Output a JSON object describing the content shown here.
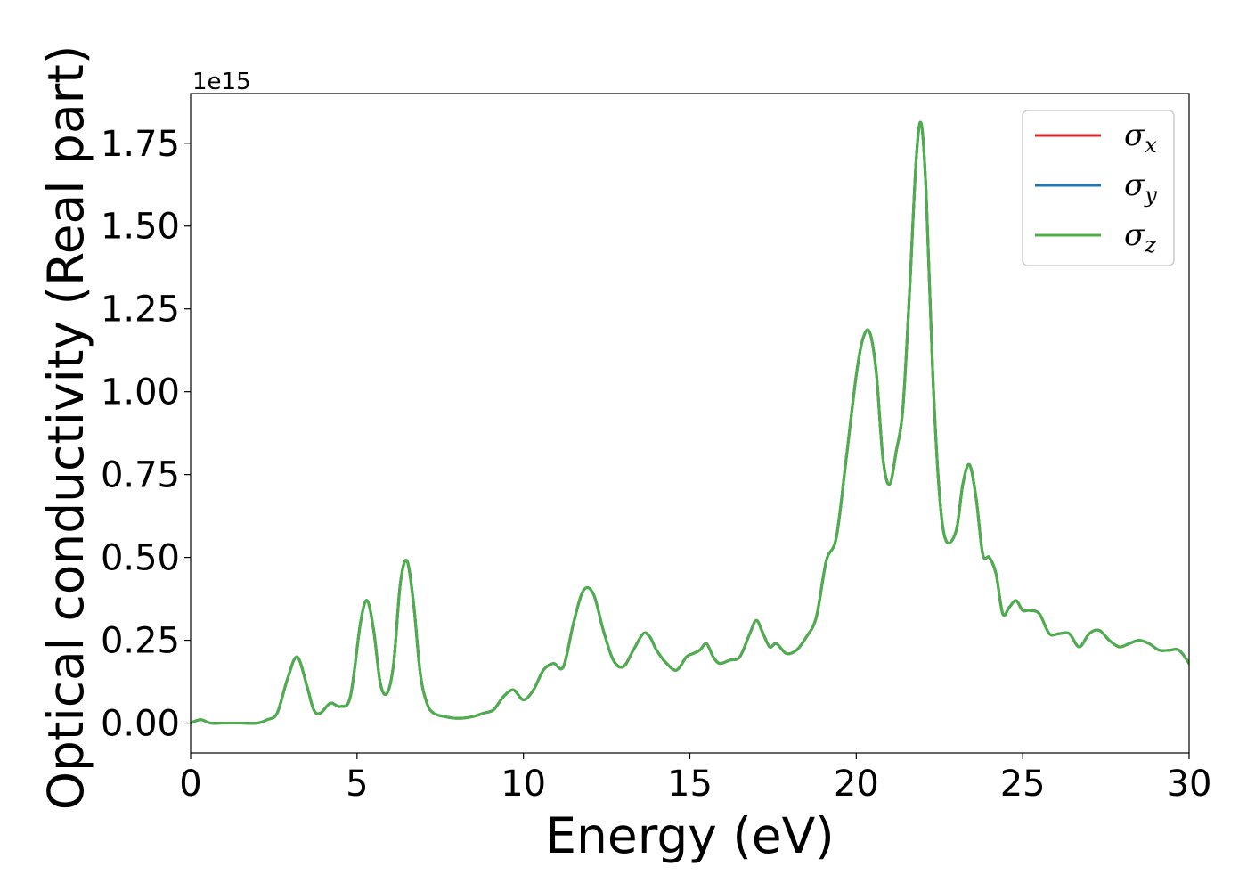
{
  "chart_data": {
    "type": "line",
    "xlabel": "Energy (eV)",
    "ylabel": "Optical conductivity (Real part)",
    "y_offset_label": "1e15",
    "xlim": [
      0,
      30
    ],
    "ylim": [
      -0.09,
      1.9
    ],
    "x_ticks": [
      0,
      5,
      10,
      15,
      20,
      25,
      30
    ],
    "x_tick_labels": [
      "0",
      "5",
      "10",
      "15",
      "20",
      "25",
      "30"
    ],
    "y_ticks": [
      0.0,
      0.25,
      0.5,
      0.75,
      1.0,
      1.25,
      1.5,
      1.75
    ],
    "y_tick_labels": [
      "0.00",
      "0.25",
      "0.50",
      "0.75",
      "1.00",
      "1.25",
      "1.50",
      "1.75"
    ],
    "grid": false,
    "legend_position": "top-right",
    "series": [
      {
        "name": "σx",
        "symbol": "σ",
        "subscript": "x",
        "color": "#d62728"
      },
      {
        "name": "σy",
        "symbol": "σ",
        "subscript": "y",
        "color": "#1f77b4"
      },
      {
        "name": "σz",
        "symbol": "σ",
        "subscript": "z",
        "color": "#4daf4a"
      }
    ],
    "x": [
      0.0,
      0.3,
      0.6,
      1.0,
      1.5,
      2.0,
      2.3,
      2.6,
      2.9,
      3.2,
      3.5,
      3.7,
      3.9,
      4.2,
      4.5,
      4.8,
      5.1,
      5.3,
      5.5,
      5.7,
      5.9,
      6.1,
      6.3,
      6.5,
      6.7,
      6.9,
      7.1,
      7.3,
      7.6,
      7.9,
      8.2,
      8.5,
      8.8,
      9.1,
      9.4,
      9.7,
      10.0,
      10.3,
      10.6,
      10.9,
      11.2,
      11.5,
      11.8,
      12.1,
      12.4,
      12.7,
      13.0,
      13.3,
      13.6,
      13.8,
      14.0,
      14.3,
      14.6,
      14.9,
      15.1,
      15.3,
      15.5,
      15.7,
      15.9,
      16.2,
      16.5,
      16.8,
      17.0,
      17.2,
      17.4,
      17.6,
      17.9,
      18.2,
      18.5,
      18.8,
      19.1,
      19.4,
      19.7,
      20.0,
      20.2,
      20.4,
      20.6,
      20.8,
      21.0,
      21.2,
      21.4,
      21.6,
      21.8,
      21.95,
      22.1,
      22.3,
      22.5,
      22.7,
      23.0,
      23.2,
      23.4,
      23.6,
      23.8,
      24.0,
      24.2,
      24.4,
      24.6,
      24.8,
      25.0,
      25.2,
      25.5,
      25.8,
      26.1,
      26.4,
      26.7,
      27.0,
      27.3,
      27.6,
      27.9,
      28.2,
      28.5,
      28.8,
      29.1,
      29.4,
      29.7,
      30.0
    ],
    "y": [
      0.0,
      0.01,
      0.0,
      0.0,
      0.0,
      0.0,
      0.01,
      0.03,
      0.13,
      0.2,
      0.11,
      0.04,
      0.03,
      0.06,
      0.05,
      0.08,
      0.3,
      0.37,
      0.28,
      0.12,
      0.09,
      0.18,
      0.42,
      0.49,
      0.36,
      0.15,
      0.06,
      0.03,
      0.02,
      0.015,
      0.015,
      0.02,
      0.03,
      0.04,
      0.08,
      0.1,
      0.07,
      0.1,
      0.16,
      0.18,
      0.17,
      0.3,
      0.4,
      0.39,
      0.28,
      0.19,
      0.17,
      0.22,
      0.27,
      0.26,
      0.22,
      0.18,
      0.16,
      0.2,
      0.21,
      0.22,
      0.24,
      0.2,
      0.18,
      0.19,
      0.2,
      0.27,
      0.31,
      0.27,
      0.23,
      0.24,
      0.21,
      0.22,
      0.26,
      0.32,
      0.49,
      0.56,
      0.8,
      1.05,
      1.16,
      1.18,
      1.06,
      0.8,
      0.72,
      0.82,
      0.95,
      1.3,
      1.7,
      1.81,
      1.6,
      1.05,
      0.69,
      0.55,
      0.58,
      0.72,
      0.78,
      0.68,
      0.51,
      0.5,
      0.45,
      0.33,
      0.35,
      0.37,
      0.34,
      0.34,
      0.33,
      0.27,
      0.27,
      0.27,
      0.23,
      0.27,
      0.28,
      0.25,
      0.23,
      0.24,
      0.25,
      0.24,
      0.22,
      0.22,
      0.22,
      0.18
    ]
  }
}
